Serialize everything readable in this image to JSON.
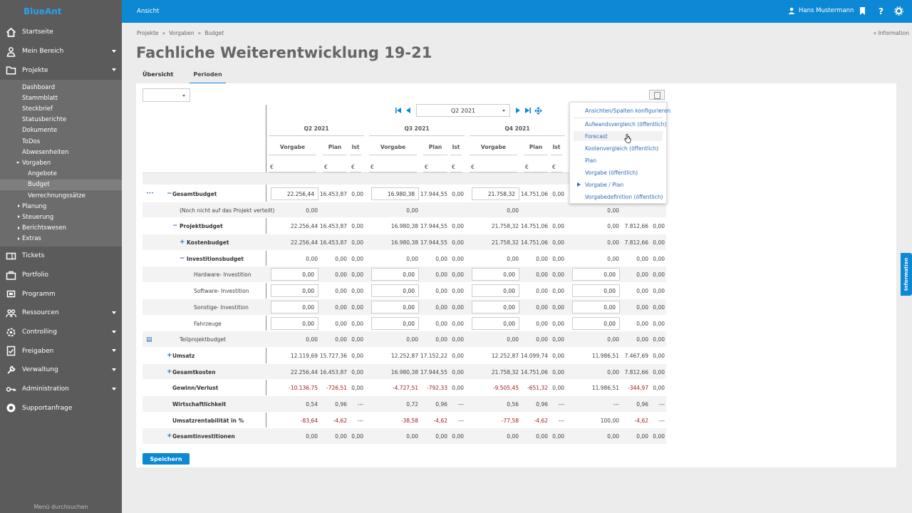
{
  "app": {
    "logo_text": "BlueAnt"
  },
  "topbar": {
    "view_label": "Ansicht",
    "user_name": "Hans Mustermann"
  },
  "sidebar": {
    "items": [
      {
        "label": "Startseite",
        "icon": "home-icon",
        "caret": false
      },
      {
        "label": "Mein Bereich",
        "icon": "user-icon",
        "caret": true
      },
      {
        "label": "Projekte",
        "icon": "folder-icon",
        "caret": true
      }
    ],
    "project_sub": [
      {
        "label": "Dashboard"
      },
      {
        "label": "Stammblatt"
      },
      {
        "label": "Steckbrief"
      },
      {
        "label": "Statusberichte"
      },
      {
        "label": "Dokumente"
      },
      {
        "label": "ToDos"
      },
      {
        "label": "Abwesenheiten"
      },
      {
        "label": "Vorgaben"
      },
      {
        "label": "Angebote"
      },
      {
        "label": "Budget"
      },
      {
        "label": "Verrechnungssätze"
      },
      {
        "label": "Planung"
      },
      {
        "label": "Steuerung"
      },
      {
        "label": "Berichtswesen"
      },
      {
        "label": "Extras"
      }
    ],
    "lower_items": [
      {
        "label": "Tickets",
        "icon": "ticket-icon",
        "caret": false
      },
      {
        "label": "Portfolio",
        "icon": "portfolio-icon",
        "caret": false
      },
      {
        "label": "Programm",
        "icon": "program-icon",
        "caret": false
      },
      {
        "label": "Ressourcen",
        "icon": "resources-icon",
        "caret": true
      },
      {
        "label": "Controlling",
        "icon": "controlling-icon",
        "caret": true
      },
      {
        "label": "Freigaben",
        "icon": "approval-icon",
        "caret": true
      },
      {
        "label": "Verwaltung",
        "icon": "wrench-icon",
        "caret": true
      },
      {
        "label": "Administration",
        "icon": "key-icon",
        "caret": true
      },
      {
        "label": "Supportanfrage",
        "icon": "support-icon",
        "caret": false
      }
    ],
    "menu_search": "Menü durchsuchen"
  },
  "breadcrumb": [
    "Projekte",
    "»",
    "Vorgaben",
    "»",
    "Budget"
  ],
  "info_link": "« Information",
  "page_title": "Fachliche Weiterentwicklung 19-21",
  "tabs": [
    {
      "label": "Übersicht"
    },
    {
      "label": "Perioden"
    }
  ],
  "period_select": "Q2 2021",
  "quarters": [
    "Q2 2021",
    "Q3 2021",
    "Q4 2021"
  ],
  "columns": {
    "vorgabe": "Vorgabe",
    "plan": "Plan",
    "ist": "Ist",
    "currency": "€"
  },
  "rows": [
    {
      "label": "Gesamtbudget",
      "bold": true,
      "pm": "−",
      "cells": [
        "22.256,44",
        "16.453,87",
        "0,00",
        "16.980,38",
        "17.944,55",
        "0,00",
        "21.758,32",
        "14.751,06",
        "0,00",
        "",
        "",
        ""
      ],
      "inputs": true
    },
    {
      "label": "(Noch nicht auf das Projekt verteilt)",
      "bold": false,
      "pm": "",
      "cells": [
        "0,00",
        "",
        "",
        "0,00",
        "",
        "",
        "0,00",
        "",
        "",
        "0,00",
        "",
        ""
      ]
    },
    {
      "label": "Projektbudget",
      "bold": true,
      "pm": "−",
      "cells": [
        "22.256,44",
        "16.453,87",
        "0,00",
        "16.980,38",
        "17.944,55",
        "0,00",
        "21.758,32",
        "14.751,06",
        "0,00",
        "0,00",
        "7.812,66",
        "0,00"
      ]
    },
    {
      "label": "Kostenbudget",
      "bold": true,
      "pm": "+",
      "cells": [
        "22.256,44",
        "16.453,87",
        "0,00",
        "16.980,38",
        "17.944,55",
        "0,00",
        "21.758,32",
        "14.751,06",
        "0,00",
        "0,00",
        "7.812,66",
        "0,00"
      ]
    },
    {
      "label": "Investitionsbudget",
      "bold": true,
      "pm": "−",
      "cells": [
        "0,00",
        "0,00",
        "0,00",
        "0,00",
        "0,00",
        "0,00",
        "0,00",
        "0,00",
        "0,00",
        "0,00",
        "0,00",
        "0,00"
      ]
    },
    {
      "label": "Hardware- Investition",
      "bold": false,
      "pm": "",
      "cells": [
        "0,00",
        "0,00",
        "0,00",
        "0,00",
        "0,00",
        "0,00",
        "0,00",
        "0,00",
        "0,00",
        "0,00",
        "0,00",
        "0,00"
      ],
      "inputs4": true
    },
    {
      "label": "Software- Investition",
      "bold": false,
      "pm": "",
      "cells": [
        "0,00",
        "0,00",
        "0,00",
        "0,00",
        "0,00",
        "0,00",
        "0,00",
        "0,00",
        "0,00",
        "0,00",
        "0,00",
        "0,00"
      ],
      "inputs4": true
    },
    {
      "label": "Sonstige- Investition",
      "bold": false,
      "pm": "",
      "cells": [
        "0,00",
        "0,00",
        "0,00",
        "0,00",
        "0,00",
        "0,00",
        "0,00",
        "0,00",
        "0,00",
        "0,00",
        "0,00",
        "0,00"
      ],
      "inputs4": true
    },
    {
      "label": "Fahrzeuge",
      "bold": false,
      "pm": "",
      "cells": [
        "0,00",
        "0,00",
        "0,00",
        "0,00",
        "0,00",
        "0,00",
        "0,00",
        "0,00",
        "0,00",
        "0,00",
        "0,00",
        "0,00"
      ],
      "inputs4": true
    },
    {
      "label": "Teilprojektbudget",
      "bold": false,
      "pm": "",
      "cells": [
        "0,00",
        "0,00",
        "0,00",
        "0,00",
        "0,00",
        "0,00",
        "0,00",
        "0,00",
        "0,00",
        "0,00",
        "0,00",
        "0,00"
      ]
    },
    {
      "label": "Umsatz",
      "bold": true,
      "pm": "+",
      "cells": [
        "12.119,69",
        "15.727,36",
        "0,00",
        "12.252,87",
        "17.152,22",
        "0,00",
        "12.252,87",
        "14.099,74",
        "0,00",
        "11.986,51",
        "7.467,69",
        "0,00"
      ]
    },
    {
      "label": "Gesamtkosten",
      "bold": true,
      "pm": "+",
      "cells": [
        "22.256,44",
        "16.453,87",
        "0,00",
        "16.980,38",
        "17.944,55",
        "0,00",
        "21.758,32",
        "14.751,06",
        "0,00",
        "0,00",
        "7.812,66",
        "0,00"
      ]
    },
    {
      "label": "Gewinn/Verlust",
      "bold": true,
      "pm": "",
      "cells": [
        "-10.136,75",
        "-726,51",
        "0,00",
        "-4.727,51",
        "-792,33",
        "0,00",
        "-9.505,45",
        "-651,32",
        "0,00",
        "11.986,51",
        "-344,97",
        "0,00"
      ]
    },
    {
      "label": "Wirtschaftlichkeit",
      "bold": true,
      "pm": "",
      "cells": [
        "0,54",
        "0,96",
        "---",
        "0,72",
        "0,96",
        "---",
        "0,56",
        "0,96",
        "---",
        "---",
        "0,96",
        "---"
      ]
    },
    {
      "label": "Umsatzrentabilität in %",
      "bold": true,
      "pm": "",
      "cells": [
        "-83,64",
        "-4,62",
        "---",
        "-38,58",
        "-4,62",
        "---",
        "-77,58",
        "-4,62",
        "---",
        "100,00",
        "-4,62",
        "---"
      ]
    },
    {
      "label": "Gesamtinvestitionen",
      "bold": true,
      "pm": "+",
      "cells": [
        "0,00",
        "0,00",
        "0,00",
        "0,00",
        "0,00",
        "0,00",
        "0,00",
        "0,00",
        "0,00",
        "0,00",
        "0,00",
        "0,00"
      ]
    }
  ],
  "dropdown": {
    "header": "Ansichten/Spalten konfigurieren",
    "items": [
      {
        "label": "Aufwandsvergleich (öffentlich)"
      },
      {
        "label": "Forecast"
      },
      {
        "label": "Kostenvergleich (öffentlich)"
      },
      {
        "label": "Plan"
      },
      {
        "label": "Vorgabe (öffentlich)"
      },
      {
        "label": "Vorgabe / Plan"
      },
      {
        "label": "Vorgabedefinition (öffentlich)"
      }
    ]
  },
  "save_label": "Speichern",
  "info_tab": "Information",
  "colors": {
    "accent": "#0d88d4",
    "sidebar": "#5b5b5b",
    "negative": "#a11d1d"
  }
}
